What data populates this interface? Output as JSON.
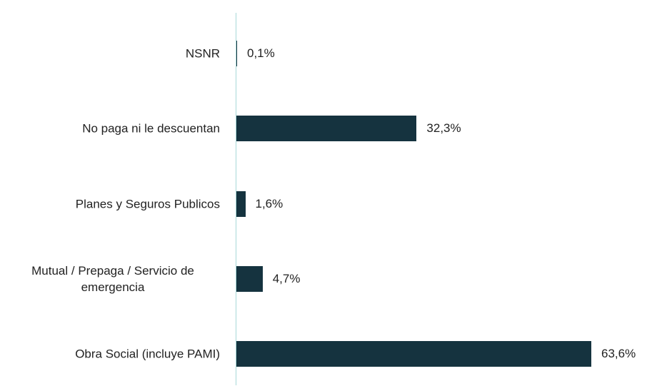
{
  "chart_data": {
    "type": "bar",
    "orientation": "horizontal",
    "categories": [
      "NSNR",
      "No paga ni le descuentan",
      "Planes y Seguros Publicos",
      "Mutual / Prepaga / Servicio de emergencia",
      "Obra Social (incluye PAMI)"
    ],
    "values": [
      0.1,
      32.3,
      1.6,
      4.7,
      63.6
    ],
    "value_labels": [
      "0,1%",
      "32,3%",
      "1,6%",
      "4,7%",
      "63,6%"
    ],
    "color": "#15333f",
    "axis_color": "#a8d8d8"
  }
}
